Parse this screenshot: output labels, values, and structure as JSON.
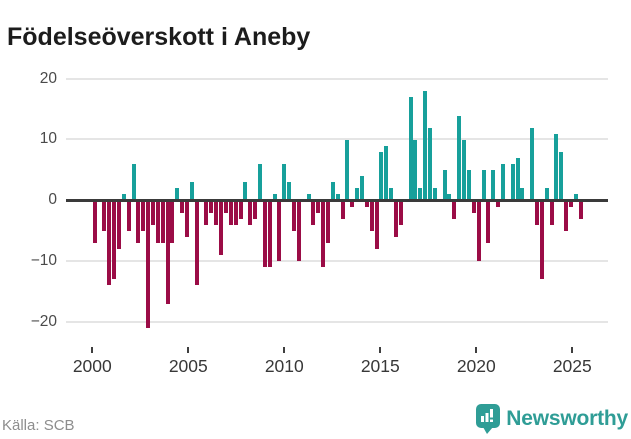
{
  "header": {
    "title": "Födelseöverskott i Aneby"
  },
  "footer": {
    "source": "Källa: SCB",
    "brand": "Newsworthy"
  },
  "chart_data": {
    "type": "bar",
    "title": "Födelseöverskott i Aneby",
    "frequency": "quarterly",
    "x_start": "2000-Q1",
    "x_end": "2025-Q1",
    "values": [
      -7,
      0,
      -5,
      -14,
      -13,
      -8,
      1,
      -5,
      6,
      -7,
      -5,
      -21,
      -4,
      -7,
      -7,
      -17,
      -7,
      2,
      -2,
      -6,
      3,
      -14,
      0,
      -4,
      -2,
      -4,
      -9,
      -2,
      -4,
      -4,
      -3,
      3,
      -4,
      -3,
      6,
      -11,
      -11,
      1,
      -10,
      6,
      3,
      -5,
      -10,
      0,
      1,
      -4,
      -2,
      -11,
      -7,
      3,
      1,
      -3,
      10,
      -1,
      2,
      4,
      -1,
      -5,
      -8,
      8,
      9,
      2,
      -6,
      -4,
      0,
      17,
      10,
      2,
      18,
      12,
      2,
      0,
      5,
      1,
      -3,
      14,
      10,
      5,
      -2,
      -10,
      5,
      -7,
      5,
      -1,
      6,
      0,
      6,
      7,
      2,
      0,
      12,
      -4,
      -13,
      2,
      -4,
      11,
      8,
      -5,
      -1,
      1,
      -3
    ],
    "x_tick_labels": [
      "2000",
      "2005",
      "2010",
      "2015",
      "2020",
      "2025"
    ],
    "y_tick_labels": [
      "20",
      "10",
      "0",
      "−10",
      "−20"
    ],
    "y_ticks": [
      20,
      10,
      0,
      -10,
      -20
    ],
    "ylim": [
      -23,
      21
    ],
    "grid": true,
    "positive_color": "#17a09b",
    "negative_color": "#9b0c46",
    "source": "Källa: SCB"
  }
}
